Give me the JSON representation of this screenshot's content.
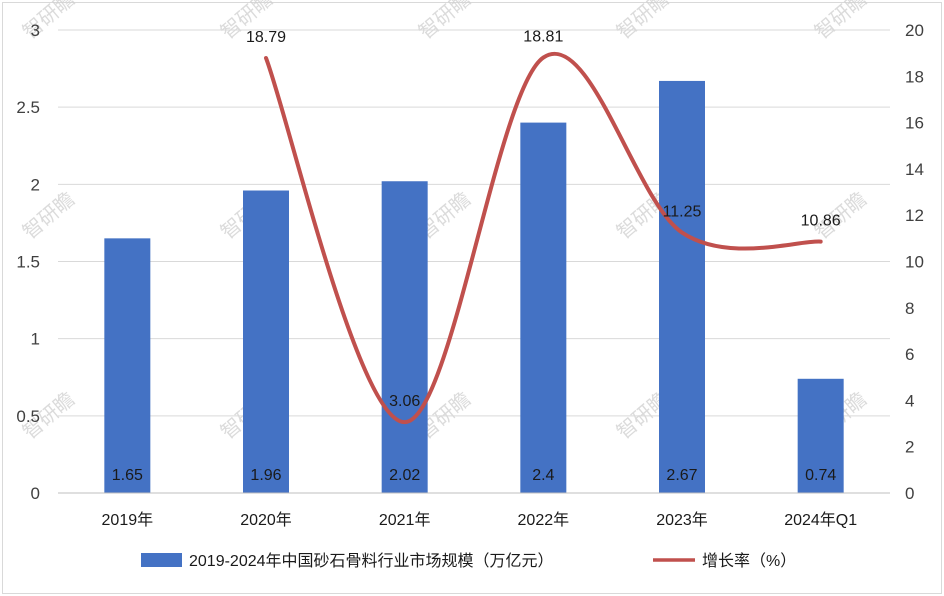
{
  "chart_data": {
    "type": "bar+line",
    "categories": [
      "2019年",
      "2020年",
      "2021年",
      "2022年",
      "2023年",
      "2024年Q1"
    ],
    "series": [
      {
        "name": "2019-2024年中国砂石骨料行业市场规模（万亿元）",
        "kind": "bar",
        "axis": "left",
        "color": "#4472c4",
        "values": [
          1.65,
          1.96,
          2.02,
          2.4,
          2.67,
          0.74
        ],
        "labels": [
          "1.65",
          "1.96",
          "2.02",
          "2.4",
          "2.67",
          "0.74"
        ]
      },
      {
        "name": "增长率（%）",
        "kind": "line",
        "axis": "right",
        "color": "#c0504d",
        "values": [
          null,
          18.79,
          3.06,
          18.81,
          11.25,
          10.86
        ],
        "labels": [
          "",
          "18.79",
          "3.06",
          "18.81",
          "11.25",
          "10.86"
        ]
      }
    ],
    "y_left": {
      "min": 0,
      "max": 3,
      "ticks": [
        "0",
        "0.5",
        "1",
        "1.5",
        "2",
        "2.5",
        "3"
      ],
      "tick_values": [
        0,
        0.5,
        1,
        1.5,
        2,
        2.5,
        3
      ]
    },
    "y_right": {
      "min": 0,
      "max": 20,
      "ticks": [
        "0",
        "2",
        "4",
        "6",
        "8",
        "10",
        "12",
        "14",
        "16",
        "18",
        "20"
      ],
      "tick_values": [
        0,
        2,
        4,
        6,
        8,
        10,
        12,
        14,
        16,
        18,
        20
      ]
    },
    "legend_position": "bottom",
    "grid": true,
    "watermark": "智研瞻"
  }
}
